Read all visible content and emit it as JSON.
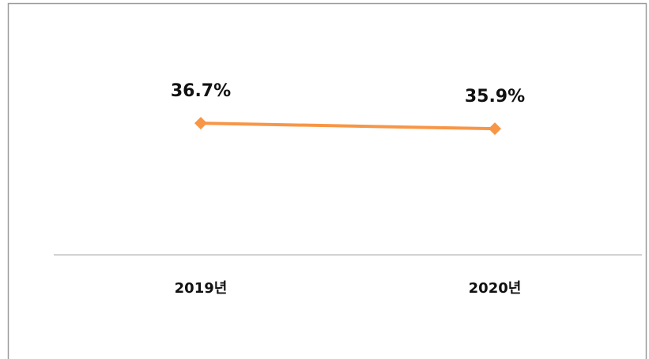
{
  "chart_data": {
    "type": "line",
    "categories": [
      "2019년",
      "2020년"
    ],
    "series": [
      {
        "color": "#f79646",
        "values": [
          36.7,
          35.9
        ],
        "value_labels": [
          "36.7%",
          "35.9%"
        ]
      }
    ],
    "ylim": [
      17.6,
      50
    ]
  }
}
